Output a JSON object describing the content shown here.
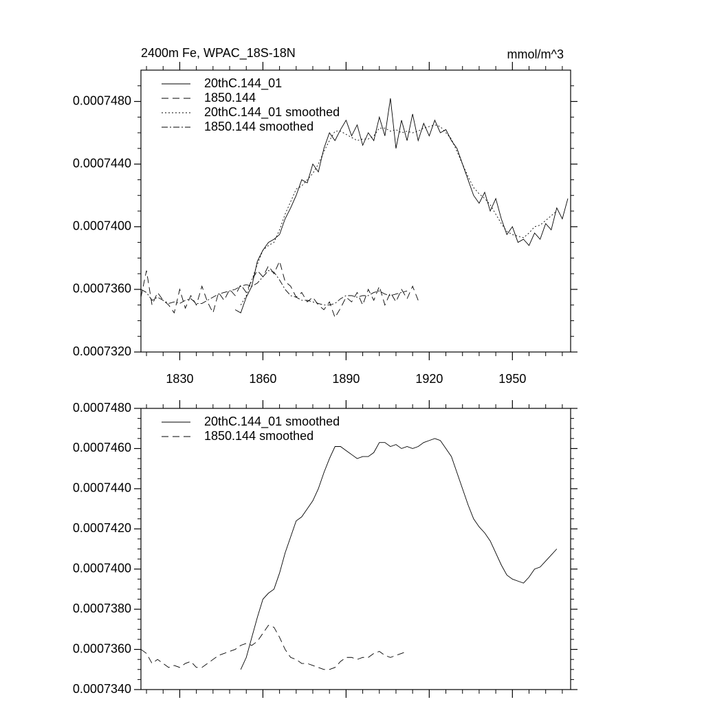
{
  "chart_data": [
    {
      "type": "line",
      "title": "2400m Fe, WPAC_18S-18N",
      "right_title": "mmol/m^3",
      "x": [
        1816,
        1818,
        1820,
        1822,
        1824,
        1826,
        1828,
        1830,
        1832,
        1834,
        1836,
        1838,
        1840,
        1842,
        1844,
        1846,
        1848,
        1850,
        1852,
        1854,
        1856,
        1858,
        1860,
        1862,
        1864,
        1866,
        1868,
        1870,
        1872,
        1874,
        1876,
        1878,
        1880,
        1882,
        1884,
        1886,
        1888,
        1890,
        1892,
        1894,
        1896,
        1898,
        1900,
        1902,
        1904,
        1906,
        1908,
        1910,
        1912,
        1914,
        1916,
        1918,
        1920,
        1922,
        1924,
        1926,
        1928,
        1930,
        1932,
        1934,
        1936,
        1938,
        1940,
        1942,
        1944,
        1946,
        1948,
        1950,
        1952,
        1954,
        1956,
        1958,
        1960,
        1962,
        1964,
        1966,
        1968,
        1970
      ],
      "xlim": [
        1816,
        1971
      ],
      "xticks": [
        1830,
        1860,
        1890,
        1920,
        1950
      ],
      "ylim": [
        0.000732,
        0.00075
      ],
      "yticks": [
        {
          "value": 0.000732,
          "label": "0.0007320"
        },
        {
          "value": 0.000736,
          "label": "0.0007360"
        },
        {
          "value": 0.00074,
          "label": "0.0007400"
        },
        {
          "value": 0.000744,
          "label": "0.0007440"
        },
        {
          "value": 0.000748,
          "label": "0.0007480"
        }
      ],
      "series": [
        {
          "name": "20thC.144_01",
          "color": "#000000",
          "dash": "solid",
          "values": [
            null,
            null,
            null,
            null,
            null,
            null,
            null,
            null,
            null,
            null,
            null,
            null,
            null,
            null,
            null,
            null,
            null,
            0.0007347,
            0.0007345,
            0.0007355,
            0.0007362,
            0.0007378,
            0.0007385,
            0.000739,
            0.0007392,
            0.0007395,
            0.0007405,
            0.0007412,
            0.000742,
            0.000743,
            0.0007428,
            0.000744,
            0.0007435,
            0.000745,
            0.000746,
            0.0007455,
            0.0007462,
            0.0007468,
            0.0007458,
            0.0007465,
            0.0007452,
            0.000746,
            0.0007455,
            0.000747,
            0.0007458,
            0.0007482,
            0.000745,
            0.0007468,
            0.0007455,
            0.0007472,
            0.0007455,
            0.0007466,
            0.0007458,
            0.0007468,
            0.000746,
            0.0007462,
            0.0007455,
            0.000745,
            0.000744,
            0.000743,
            0.000742,
            0.0007415,
            0.0007422,
            0.000741,
            0.0007418,
            0.0007405,
            0.0007395,
            0.00074,
            0.000739,
            0.0007392,
            0.0007388,
            0.0007396,
            0.0007392,
            0.0007402,
            0.0007398,
            0.0007412,
            0.0007405,
            0.0007418
          ]
        },
        {
          "name": "1850.144",
          "color": "#000000",
          "dash": "dashed",
          "values": [
            0.0007355,
            0.0007372,
            0.000735,
            0.0007358,
            0.0007353,
            0.000735,
            0.0007345,
            0.000736,
            0.0007348,
            0.0007356,
            0.000735,
            0.0007362,
            0.0007352,
            0.0007345,
            0.0007358,
            0.0007353,
            0.000736,
            0.0007356,
            0.0007363,
            0.0007358,
            0.0007366,
            0.0007372,
            0.0007368,
            0.0007375,
            0.000737,
            0.0007378,
            0.0007365,
            0.0007362,
            0.0007355,
            0.0007358,
            0.0007352,
            0.0007355,
            0.000735,
            0.0007347,
            0.0007352,
            0.0007342,
            0.0007348,
            0.0007355,
            0.0007352,
            0.0007358,
            0.000735,
            0.000736,
            0.0007353,
            0.0007362,
            0.000735,
            0.0007358,
            0.0007352,
            0.000736,
            0.0007354,
            0.0007362,
            0.0007353,
            null,
            null,
            null,
            null,
            null,
            null,
            null,
            null,
            null,
            null,
            null,
            null,
            null,
            null,
            null,
            null,
            null,
            null,
            null,
            null,
            null,
            null,
            null,
            null,
            null,
            null,
            null
          ]
        },
        {
          "name": "20thC.144_01 smoothed",
          "color": "#000000",
          "dash": "dotted",
          "values": [
            null,
            null,
            null,
            null,
            null,
            null,
            null,
            null,
            null,
            null,
            null,
            null,
            null,
            null,
            null,
            null,
            null,
            null,
            0.000735,
            0.0007356,
            0.0007366,
            0.0007376,
            0.0007385,
            0.0007388,
            0.000739,
            0.0007398,
            0.0007408,
            0.0007416,
            0.0007424,
            0.0007426,
            0.000743,
            0.0007434,
            0.000744,
            0.0007448,
            0.0007455,
            0.0007461,
            0.0007461,
            0.0007459,
            0.0007457,
            0.0007455,
            0.0007456,
            0.0007456,
            0.0007458,
            0.0007463,
            0.0007463,
            0.0007461,
            0.0007462,
            0.000746,
            0.0007461,
            0.000746,
            0.0007461,
            0.0007463,
            0.0007464,
            0.0007465,
            0.0007464,
            0.000746,
            0.0007456,
            0.0007448,
            0.000744,
            0.0007432,
            0.0007425,
            0.0007421,
            0.0007418,
            0.0007414,
            0.0007408,
            0.0007402,
            0.0007397,
            0.0007395,
            0.0007394,
            0.0007393,
            0.0007396,
            0.00074,
            0.0007401,
            0.0007404,
            0.0007407,
            0.000741,
            null,
            null
          ]
        },
        {
          "name": "1850.144 smoothed",
          "color": "#000000",
          "dash": "dashdot",
          "values": [
            0.000736,
            0.0007358,
            0.0007353,
            0.0007355,
            0.0007353,
            0.0007351,
            0.0007352,
            0.0007351,
            0.0007353,
            0.0007354,
            0.0007351,
            0.0007351,
            0.0007353,
            0.0007355,
            0.0007357,
            0.0007358,
            0.0007359,
            0.000736,
            0.0007362,
            0.0007363,
            0.0007362,
            0.0007364,
            0.0007368,
            0.0007372,
            0.0007371,
            0.0007366,
            0.000736,
            0.0007356,
            0.0007355,
            0.0007353,
            0.0007353,
            0.0007352,
            0.0007351,
            0.000735,
            0.000735,
            0.0007351,
            0.0007354,
            0.0007356,
            0.0007356,
            0.0007355,
            0.0007356,
            0.0007356,
            0.0007358,
            0.0007359,
            0.0007357,
            0.0007356,
            0.0007357,
            0.0007358,
            0.0007359,
            null,
            null,
            null,
            null,
            null,
            null,
            null,
            null,
            null,
            null,
            null,
            null,
            null,
            null,
            null,
            null,
            null,
            null,
            null,
            null,
            null,
            null,
            null,
            null,
            null,
            null,
            null,
            null,
            null
          ]
        }
      ]
    },
    {
      "type": "line",
      "x": [
        1816,
        1818,
        1820,
        1822,
        1824,
        1826,
        1828,
        1830,
        1832,
        1834,
        1836,
        1838,
        1840,
        1842,
        1844,
        1846,
        1848,
        1850,
        1852,
        1854,
        1856,
        1858,
        1860,
        1862,
        1864,
        1866,
        1868,
        1870,
        1872,
        1874,
        1876,
        1878,
        1880,
        1882,
        1884,
        1886,
        1888,
        1890,
        1892,
        1894,
        1896,
        1898,
        1900,
        1902,
        1904,
        1906,
        1908,
        1910,
        1912,
        1914,
        1916,
        1918,
        1920,
        1922,
        1924,
        1926,
        1928,
        1930,
        1932,
        1934,
        1936,
        1938,
        1940,
        1942,
        1944,
        1946,
        1948,
        1950,
        1952,
        1954,
        1956,
        1958,
        1960,
        1962,
        1964,
        1966,
        1968,
        1970
      ],
      "xlim": [
        1816,
        1971
      ],
      "xticks": [
        1830,
        1860,
        1890,
        1920,
        1950
      ],
      "ylim": [
        0.000734,
        0.000748
      ],
      "yticks": [
        {
          "value": 0.000734,
          "label": "0.0007340"
        },
        {
          "value": 0.000736,
          "label": "0.0007360"
        },
        {
          "value": 0.000738,
          "label": "0.0007380"
        },
        {
          "value": 0.00074,
          "label": "0.0007400"
        },
        {
          "value": 0.000742,
          "label": "0.0007420"
        },
        {
          "value": 0.000744,
          "label": "0.0007440"
        },
        {
          "value": 0.000746,
          "label": "0.0007460"
        },
        {
          "value": 0.000748,
          "label": "0.0007480"
        }
      ],
      "series": [
        {
          "name": "20thC.144_01 smoothed",
          "color": "#000000",
          "dash": "solid",
          "values": [
            null,
            null,
            null,
            null,
            null,
            null,
            null,
            null,
            null,
            null,
            null,
            null,
            null,
            null,
            null,
            null,
            null,
            null,
            0.000735,
            0.0007356,
            0.0007366,
            0.0007376,
            0.0007385,
            0.0007388,
            0.000739,
            0.0007398,
            0.0007408,
            0.0007416,
            0.0007424,
            0.0007426,
            0.000743,
            0.0007434,
            0.000744,
            0.0007448,
            0.0007455,
            0.0007461,
            0.0007461,
            0.0007459,
            0.0007457,
            0.0007455,
            0.0007456,
            0.0007456,
            0.0007458,
            0.0007463,
            0.0007463,
            0.0007461,
            0.0007462,
            0.000746,
            0.0007461,
            0.000746,
            0.0007461,
            0.0007463,
            0.0007464,
            0.0007465,
            0.0007464,
            0.000746,
            0.0007456,
            0.0007448,
            0.000744,
            0.0007432,
            0.0007425,
            0.0007421,
            0.0007418,
            0.0007414,
            0.0007408,
            0.0007402,
            0.0007397,
            0.0007395,
            0.0007394,
            0.0007393,
            0.0007396,
            0.00074,
            0.0007401,
            0.0007404,
            0.0007407,
            0.000741,
            null,
            null
          ]
        },
        {
          "name": "1850.144 smoothed",
          "color": "#000000",
          "dash": "dashed",
          "values": [
            0.000736,
            0.0007358,
            0.0007353,
            0.0007355,
            0.0007353,
            0.0007351,
            0.0007352,
            0.0007351,
            0.0007353,
            0.0007354,
            0.0007351,
            0.0007351,
            0.0007353,
            0.0007355,
            0.0007357,
            0.0007358,
            0.0007359,
            0.000736,
            0.0007362,
            0.0007363,
            0.0007362,
            0.0007364,
            0.0007368,
            0.0007372,
            0.0007371,
            0.0007366,
            0.000736,
            0.0007356,
            0.0007355,
            0.0007353,
            0.0007353,
            0.0007352,
            0.0007351,
            0.000735,
            0.000735,
            0.0007351,
            0.0007354,
            0.0007356,
            0.0007356,
            0.0007355,
            0.0007356,
            0.0007356,
            0.0007358,
            0.0007359,
            0.0007357,
            0.0007356,
            0.0007357,
            0.0007358,
            0.0007359,
            null,
            null,
            null,
            null,
            null,
            null,
            null,
            null,
            null,
            null,
            null,
            null,
            null,
            null,
            null,
            null,
            null,
            null,
            null,
            null,
            null,
            null,
            null,
            null,
            null,
            null,
            null,
            null,
            null
          ]
        }
      ]
    }
  ]
}
